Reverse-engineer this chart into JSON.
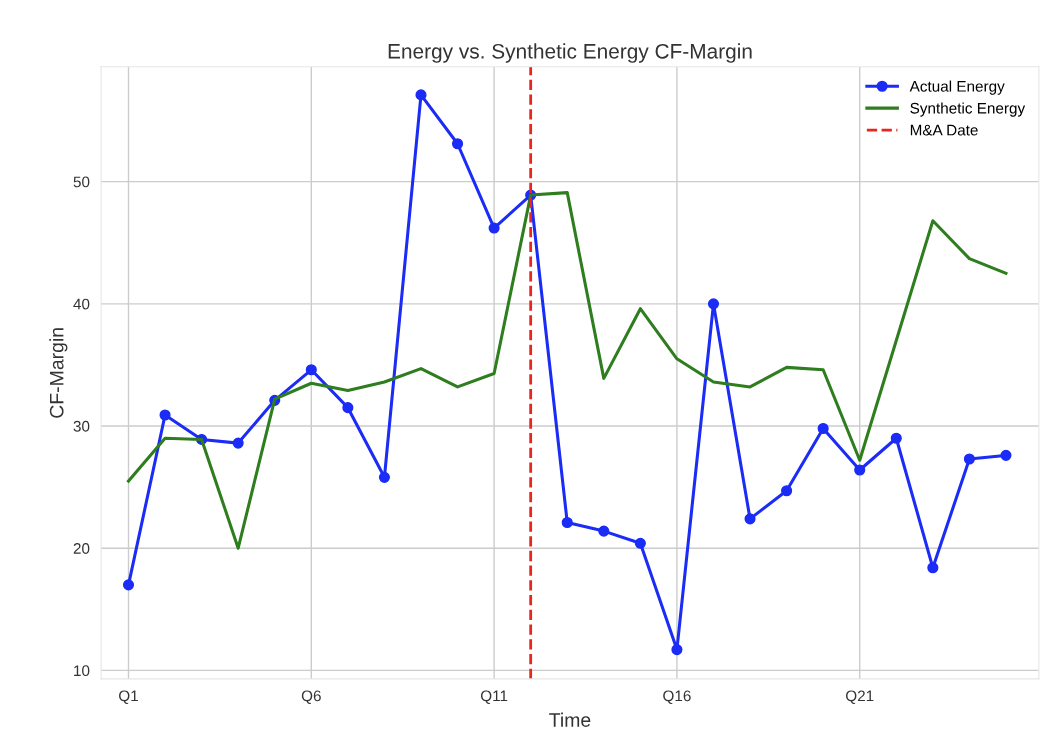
{
  "chart_data": {
    "type": "line",
    "title": "Energy vs. Synthetic Energy CF-Margin",
    "xlabel": "Time",
    "ylabel": "CF-Margin",
    "categories": [
      "Q1",
      null,
      null,
      null,
      null,
      "Q6",
      null,
      null,
      null,
      null,
      "Q11",
      null,
      null,
      null,
      null,
      "Q16",
      null,
      null,
      null,
      null,
      "Q21",
      null,
      null,
      null,
      null
    ],
    "series": [
      {
        "name": "Actual Energy",
        "color": "#1a2cf5",
        "marker": "circle",
        "values": [
          17.0,
          30.9,
          28.9,
          28.6,
          32.1,
          34.6,
          31.5,
          25.8,
          57.1,
          53.1,
          46.2,
          48.9,
          22.1,
          21.4,
          20.4,
          11.7,
          40.0,
          22.4,
          24.7,
          29.8,
          26.4,
          29.0,
          18.4,
          27.3,
          27.6
        ]
      },
      {
        "name": "Synthetic Energy",
        "color": "#2e7d1e",
        "marker": "none",
        "values": [
          25.5,
          29.0,
          28.9,
          20.0,
          32.2,
          33.5,
          32.9,
          33.6,
          34.7,
          33.2,
          34.3,
          48.9,
          49.1,
          33.9,
          39.6,
          35.5,
          33.6,
          33.2,
          34.8,
          34.6,
          27.2,
          37.0,
          46.8,
          43.7,
          42.5
        ]
      }
    ],
    "ref_lines": [
      {
        "axis": "x",
        "label": "M&A Date",
        "color": "#e8251f",
        "line_style": "dashed"
      }
    ],
    "ylim": [
      9.3,
      59.4
    ],
    "yticks": [
      10,
      20,
      30,
      40,
      50
    ],
    "grid": true,
    "legend": "top right",
    "line_style": "solid"
  }
}
